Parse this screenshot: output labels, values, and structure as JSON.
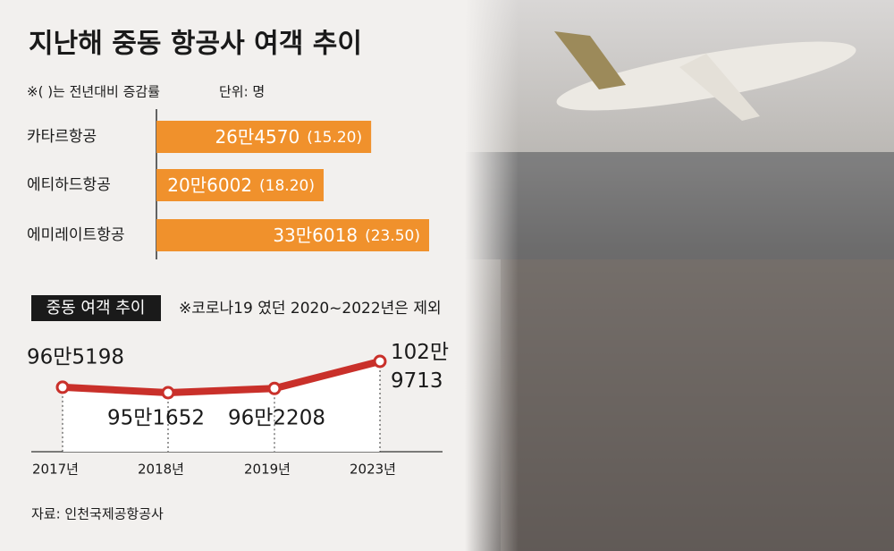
{
  "title": "지난해 중동 항공사 여객 추이",
  "chart_data": [
    {
      "type": "barh",
      "note": "※( )는 전년대비 증감률",
      "unit": "단위: 명",
      "categories": [
        "카타르항공",
        "에티하드항공",
        "에미레이트항공"
      ],
      "values": [
        264570,
        206002,
        336018
      ],
      "value_labels": [
        "26만4570",
        "20만6002",
        "33만6018"
      ],
      "growth_labels": [
        "(15.20)",
        "(18.20)",
        "(23.50)"
      ],
      "color": "#f0912c"
    },
    {
      "type": "line",
      "title": "중동 여객 추이",
      "note": "※코로나19 였던 2020~2022년은 제외",
      "categories": [
        "2017년",
        "2018년",
        "2019년",
        "2023년"
      ],
      "values": [
        965198,
        951652,
        962208,
        1029713
      ],
      "value_labels": [
        "96만5198",
        "95만1652",
        "96만2208",
        "102만 9713"
      ],
      "color": "#c9302a"
    }
  ],
  "source": "자료: 인천국제공항공사"
}
